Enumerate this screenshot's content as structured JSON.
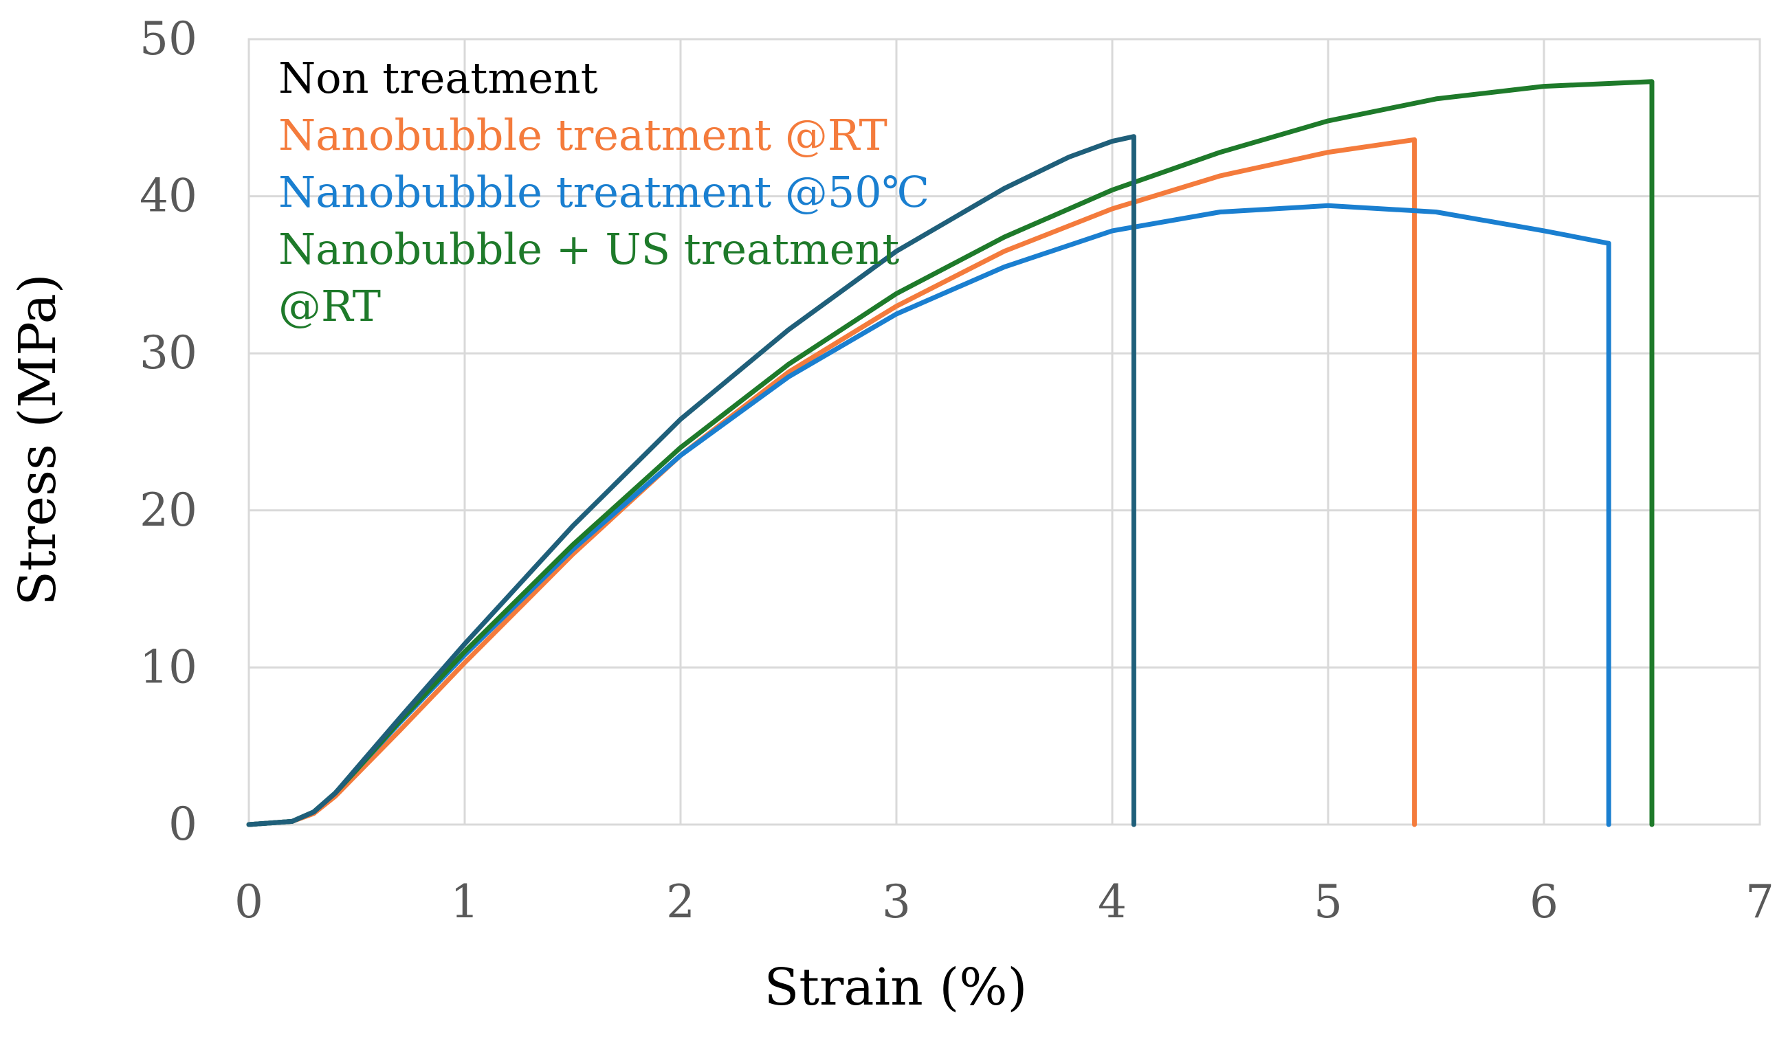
{
  "chart_data": {
    "type": "line",
    "title": "",
    "xlabel": "Strain (%)",
    "ylabel": "Stress (MPa)",
    "xlim": [
      0,
      7
    ],
    "ylim": [
      0,
      50
    ],
    "xticks": [
      0,
      1,
      2,
      3,
      4,
      5,
      6,
      7
    ],
    "yticks": [
      0,
      10,
      20,
      30,
      40,
      50
    ],
    "grid": true,
    "legend_position": "top-left",
    "series": [
      {
        "name": "Non treatment",
        "color": "#1f5f7a",
        "legend_color": "#000000",
        "x": [
          0,
          0.2,
          0.3,
          0.4,
          0.5,
          0.7,
          1.0,
          1.5,
          2.0,
          2.5,
          3.0,
          3.5,
          3.8,
          4.0,
          4.1,
          4.1
        ],
        "y": [
          0,
          0.2,
          0.8,
          2.0,
          3.6,
          6.8,
          11.5,
          19.0,
          25.8,
          31.5,
          36.5,
          40.5,
          42.5,
          43.5,
          43.8,
          0
        ]
      },
      {
        "name": "Nanobubble  treatment @RT",
        "color": "#f47b3c",
        "legend_color": "#f47b3c",
        "x": [
          0,
          0.2,
          0.3,
          0.4,
          0.5,
          0.7,
          1.0,
          1.5,
          2.0,
          2.5,
          3.0,
          3.5,
          4.0,
          4.5,
          5.0,
          5.4,
          5.4
        ],
        "y": [
          0,
          0.2,
          0.7,
          1.8,
          3.2,
          6.0,
          10.3,
          17.2,
          23.5,
          28.8,
          33.0,
          36.5,
          39.2,
          41.3,
          42.8,
          43.6,
          0
        ]
      },
      {
        "name": "Nanobubble  treatment @50℃",
        "color": "#1a7fd0",
        "legend_color": "#1a7fd0",
        "x": [
          0,
          0.2,
          0.3,
          0.4,
          0.5,
          0.7,
          1.0,
          1.5,
          2.0,
          2.5,
          3.0,
          3.5,
          4.0,
          4.5,
          5.0,
          5.5,
          6.0,
          6.3,
          6.3
        ],
        "y": [
          0,
          0.2,
          0.8,
          2.0,
          3.5,
          6.5,
          10.8,
          17.5,
          23.5,
          28.5,
          32.5,
          35.5,
          37.8,
          39.0,
          39.4,
          39.0,
          37.8,
          37.0,
          0
        ]
      },
      {
        "name": "Nanobubble  +  US  treatment @RT",
        "color": "#1e7a2a",
        "legend_color": "#1e7a2a",
        "x": [
          0,
          0.2,
          0.3,
          0.4,
          0.5,
          0.7,
          1.0,
          1.5,
          2.0,
          2.5,
          3.0,
          3.5,
          4.0,
          4.5,
          5.0,
          5.5,
          6.0,
          6.5,
          6.5
        ],
        "y": [
          0,
          0.2,
          0.8,
          2.0,
          3.5,
          6.6,
          11.0,
          17.8,
          24.0,
          29.3,
          33.8,
          37.4,
          40.4,
          42.8,
          44.8,
          46.2,
          47.0,
          47.3,
          0
        ]
      }
    ]
  },
  "legend_lines": [
    [
      "Non treatment"
    ],
    [
      "Nanobubble  treatment @RT"
    ],
    [
      "Nanobubble  treatment @50℃"
    ],
    [
      "Nanobubble  +  US  treatment",
      "@RT"
    ]
  ]
}
